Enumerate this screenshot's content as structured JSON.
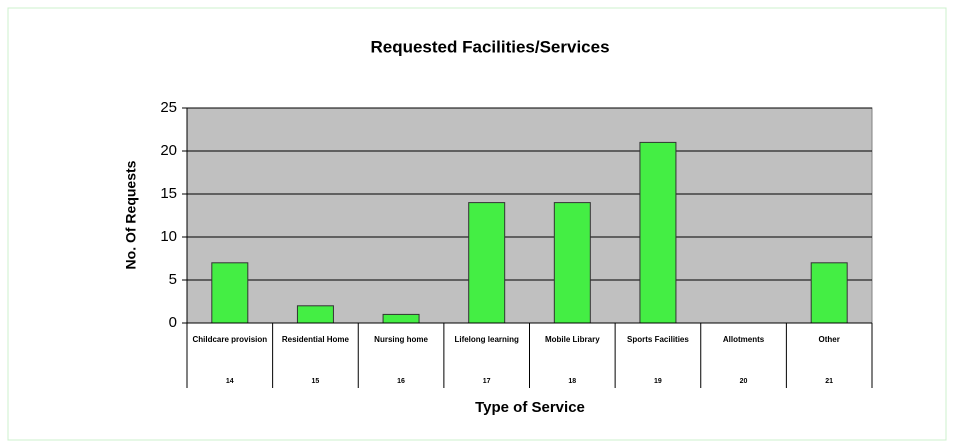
{
  "chart_data": {
    "type": "bar",
    "title": "Requested Facilities/Services",
    "categories": [
      "Childcare provision",
      "Residential Home",
      "Nursing home",
      "Lifelong learning",
      "Mobile Library",
      "Sports Facilities",
      "Allotments",
      "Other"
    ],
    "category_numbers": [
      14,
      15,
      16,
      17,
      18,
      19,
      20,
      21
    ],
    "values": [
      7,
      2,
      1,
      14,
      14,
      21,
      0,
      7
    ],
    "color": "#44ee44",
    "ylim": [
      0,
      25
    ],
    "yticks": [
      0,
      5,
      10,
      15,
      20,
      25
    ],
    "grid": true,
    "x_label": "Type of Service",
    "y_label": "No. Of Requests"
  }
}
